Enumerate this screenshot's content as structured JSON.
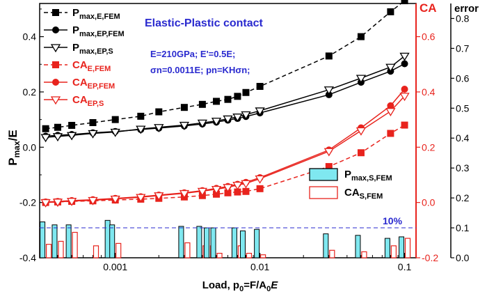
{
  "chart_data": {
    "type": "line",
    "xscale": "log",
    "xlim": [
      0.0003,
      0.12
    ],
    "xticks": [
      "0.001",
      "0.01",
      "0.1"
    ],
    "xtick_values": [
      0.001,
      0.01,
      0.1
    ],
    "xlabel_main": "Load, p",
    "xlabel_sub": "0",
    "xlabel_rest": "=F/A",
    "xlabel_sub2": "0",
    "xlabel_end": "E",
    "left_axis": {
      "label_main": "P",
      "label_sub": "max",
      "label_rest": "/E",
      "ylim": [
        -0.4,
        0.52
      ],
      "ticks": [
        "-0.4",
        "-0.2",
        "0.0",
        "0.2",
        "0.4"
      ],
      "tick_values": [
        -0.4,
        -0.2,
        0.0,
        0.2,
        0.4
      ],
      "color": "#000000"
    },
    "right_axis_ca": {
      "label": "CA",
      "ylim": [
        -0.2,
        0.72
      ],
      "ticks": [
        "-0.2",
        "0.0",
        "0.2",
        "0.4",
        "0.6"
      ],
      "tick_values": [
        -0.2,
        0.0,
        0.2,
        0.4,
        0.6
      ],
      "color": "#e8231d"
    },
    "right_axis_error": {
      "label": "error",
      "ylim": [
        0.0,
        0.85
      ],
      "ticks": [
        "0.0",
        "0.1",
        "0.2",
        "0.3",
        "0.4",
        "0.5",
        "0.6",
        "0.7",
        "0.8"
      ],
      "tick_values": [
        0.0,
        0.1,
        0.2,
        0.3,
        0.4,
        0.5,
        0.6,
        0.7,
        0.8
      ],
      "color": "#000000"
    },
    "x": [
      0.00033,
      0.0004,
      0.0005,
      0.0007,
      0.001,
      0.0015,
      0.002,
      0.003,
      0.004,
      0.005,
      0.006,
      0.007,
      0.008,
      0.01,
      0.03,
      0.05,
      0.08,
      0.1
    ],
    "series": [
      {
        "name_main": "P",
        "name_sub": "max,E,FEM",
        "axis": "left",
        "color": "#000000",
        "dash": true,
        "marker": "square",
        "values": [
          0.067,
          0.072,
          0.079,
          0.089,
          0.1,
          0.112,
          0.128,
          0.144,
          0.155,
          0.166,
          0.173,
          0.184,
          0.198,
          0.22,
          0.33,
          0.4,
          0.49,
          0.53
        ]
      },
      {
        "name_main": "P",
        "name_sub": "max,EP,FEM",
        "axis": "left",
        "color": "#000000",
        "dash": false,
        "marker": "circle",
        "values": [
          0.04,
          0.043,
          0.046,
          0.052,
          0.057,
          0.064,
          0.069,
          0.077,
          0.084,
          0.091,
          0.098,
          0.104,
          0.111,
          0.124,
          0.19,
          0.235,
          0.275,
          0.302
        ]
      },
      {
        "name_main": "P",
        "name_sub": "max,EP,S",
        "axis": "left",
        "color": "#000000",
        "dash": false,
        "marker": "triangle-down",
        "values": [
          0.036,
          0.039,
          0.043,
          0.05,
          0.055,
          0.066,
          0.072,
          0.08,
          0.088,
          0.095,
          0.103,
          0.11,
          0.118,
          0.132,
          0.208,
          0.25,
          0.29,
          0.33
        ]
      },
      {
        "name_main": "CA",
        "name_sub": "E,FEM",
        "axis": "ca",
        "color": "#e8231d",
        "dash": true,
        "marker": "square",
        "values": [
          0.0,
          0.002,
          0.004,
          0.006,
          0.009,
          0.012,
          0.015,
          0.02,
          0.025,
          0.03,
          0.035,
          0.038,
          0.04,
          0.05,
          0.13,
          0.18,
          0.25,
          0.28
        ]
      },
      {
        "name_main": "CA",
        "name_sub": "EP,FEM",
        "axis": "ca",
        "color": "#e8231d",
        "dash": false,
        "marker": "circle",
        "values": [
          0.002,
          0.004,
          0.007,
          0.01,
          0.015,
          0.021,
          0.027,
          0.035,
          0.043,
          0.051,
          0.058,
          0.066,
          0.073,
          0.09,
          0.19,
          0.27,
          0.35,
          0.41
        ]
      },
      {
        "name_main": "CA",
        "name_sub": "EP,S",
        "axis": "ca",
        "color": "#e8231d",
        "dash": false,
        "marker": "triangle-down",
        "values": [
          0.0,
          0.002,
          0.005,
          0.008,
          0.013,
          0.019,
          0.025,
          0.033,
          0.041,
          0.048,
          0.055,
          0.063,
          0.069,
          0.086,
          0.185,
          0.26,
          0.33,
          0.385
        ]
      }
    ],
    "bars": [
      {
        "name_main": "P",
        "name_sub": "max,S,FEM",
        "axis": "error",
        "fill": "#7fe8f0",
        "stroke": "#000000",
        "values": [
          0.12,
          0.11,
          0.11,
          0.0,
          0.125,
          0.11,
          0.0,
          0.105,
          0.105,
          0.1,
          0.1,
          0.1,
          0.09,
          0.095,
          0.08,
          0.075,
          0.065,
          0.07
        ]
      },
      {
        "name_main": "CA",
        "name_sub": "S,FEM",
        "axis": "error",
        "fill": "#ffffff",
        "stroke": "#e8231d",
        "values": [
          0.045,
          0.055,
          0.085,
          0.04,
          0.0,
          0.048,
          0.0,
          0.05,
          0.04,
          0.04,
          0.015,
          0.04,
          0.015,
          0.01,
          0.025,
          0.02,
          0.04,
          0.065
        ]
      }
    ],
    "bar_x": [
      0.00033,
      0.0004,
      0.0005,
      0.0007,
      0.00093,
      0.001,
      0.002,
      0.003,
      0.004,
      0.0045,
      0.005,
      0.007,
      0.008,
      0.01,
      0.03,
      0.05,
      0.08,
      0.1
    ],
    "threshold": {
      "value": 0.1,
      "axis": "error",
      "label": "10%",
      "color": "#2a2acf"
    },
    "annotation": {
      "title": "Elastic-Plastic contact",
      "line1": "E=210GPa; E'=0.5E;",
      "line2": "σn=0.0011E; pn=KHσn;",
      "color": "#2a2acf"
    },
    "legend_position": "top-left",
    "bar_legend_position": "right-middle"
  }
}
